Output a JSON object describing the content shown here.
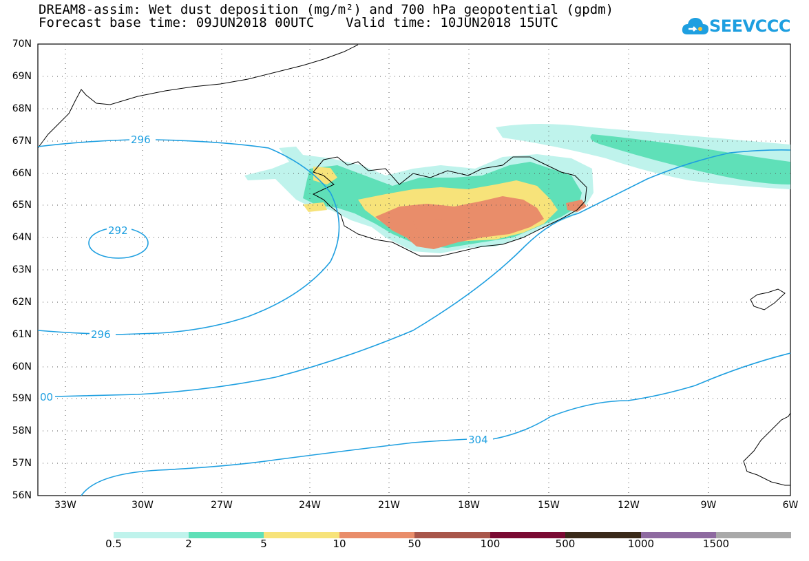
{
  "title": {
    "line1": "DREAM8-assim: Wet dust deposition (mg/m²) and 700 hPa geopotential (gpdm)",
    "line2": "Forecast base time: 09JUN2018 00UTC    Valid time: 10JUN2018 15UTC"
  },
  "logo": {
    "text": "SEEVCCC"
  },
  "axes": {
    "latitudes": [
      "70N",
      "69N",
      "68N",
      "67N",
      "66N",
      "65N",
      "64N",
      "63N",
      "62N",
      "61N",
      "60N",
      "59N",
      "58N",
      "57N",
      "56N"
    ],
    "longitudes": [
      "33W",
      "30W",
      "27W",
      "24W",
      "21W",
      "18W",
      "15W",
      "12W",
      "9W",
      "6W"
    ]
  },
  "contour_labels": [
    {
      "text": "296"
    },
    {
      "text": "292"
    },
    {
      "text": "296"
    },
    {
      "text": "00"
    },
    {
      "text": "304"
    }
  ],
  "colorbar": {
    "levels": [
      "0.5",
      "2",
      "5",
      "10",
      "50",
      "100",
      "500",
      "1000",
      "1500"
    ],
    "colors": [
      "#bff3ec",
      "#5fe0b8",
      "#f7e37a",
      "#e98d6a",
      "#a8564a",
      "#7a0a33",
      "#3a2a1a",
      "#8e6aa0",
      "#a9a9a9"
    ]
  },
  "colors": {
    "contour": "#1e9fe0",
    "coast": "#000000",
    "grid": "#555555"
  }
}
